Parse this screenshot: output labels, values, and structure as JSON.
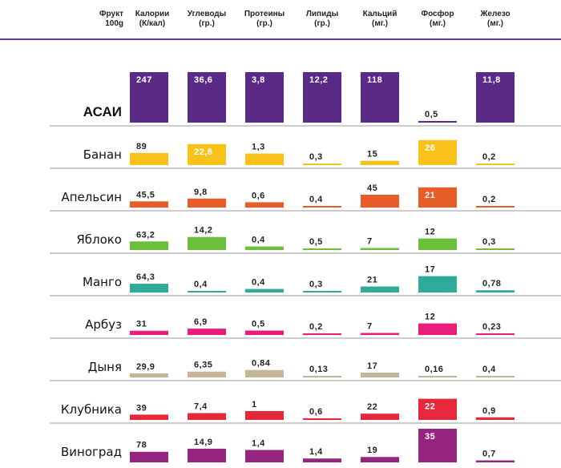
{
  "header": {
    "fruit": "Фрукт\n100g",
    "columns": [
      "Калории\n(К/кал)",
      "Углеводы\n(гр.)",
      "Протеины\n(гр.)",
      "Липиды\n(гр.)",
      "Кальций\n(мг.)",
      "Фосфор\n(мг.)",
      "Железо\n(мг.)"
    ]
  },
  "chart_data": {
    "type": "table",
    "columns": [
      "Калории (К/кал)",
      "Углеводы (гр.)",
      "Протеины (гр.)",
      "Липиды (гр.)",
      "Кальций (мг.)",
      "Фосфор (мг.)",
      "Железо (мг.)"
    ],
    "rows": [
      {
        "name": "АСАИ",
        "color": "#5b2a86",
        "highlight": true,
        "labels": [
          "247",
          "36,6",
          "3,8",
          "12,2",
          "118",
          "0,5",
          "11,8"
        ],
        "values": [
          247,
          36.6,
          3.8,
          12.2,
          118,
          0.5,
          11.8
        ]
      },
      {
        "name": "Банан",
        "color": "#f9c21b",
        "labels": [
          "89",
          "22,8",
          "1,3",
          "0,3",
          "15",
          "26",
          "0,2"
        ],
        "values": [
          89,
          22.8,
          1.3,
          0.3,
          15,
          26,
          0.2
        ]
      },
      {
        "name": "Апельсин",
        "color": "#e85c2a",
        "labels": [
          "45,5",
          "9,8",
          "0,6",
          "0,4",
          "45",
          "21",
          "0,2"
        ],
        "values": [
          45.5,
          9.8,
          0.6,
          0.4,
          45,
          21,
          0.2
        ]
      },
      {
        "name": "Яблоко",
        "color": "#6bbf3a",
        "labels": [
          "63,2",
          "14,2",
          "0,4",
          "0,5",
          "7",
          "12",
          "0,3"
        ],
        "values": [
          63.2,
          14.2,
          0.4,
          0.5,
          7,
          12,
          0.3
        ]
      },
      {
        "name": "Манго",
        "color": "#2faa9b",
        "labels": [
          "64,3",
          "0,4",
          "0,4",
          "0,3",
          "21",
          "17",
          "0,78"
        ],
        "values": [
          64.3,
          0.4,
          0.4,
          0.3,
          21,
          17,
          0.78
        ]
      },
      {
        "name": "Арбуз",
        "color": "#ec1c7a",
        "labels": [
          "31",
          "6,9",
          "0,5",
          "0,2",
          "7",
          "12",
          "0,23"
        ],
        "values": [
          31,
          6.9,
          0.5,
          0.2,
          7,
          12,
          0.23
        ]
      },
      {
        "name": "Дыня",
        "color": "#c4b596",
        "labels": [
          "29,9",
          "6,35",
          "0,84",
          "0,13",
          "17",
          "0,16",
          "0,4"
        ],
        "values": [
          29.9,
          6.35,
          0.84,
          0.13,
          17,
          0.16,
          0.4
        ]
      },
      {
        "name": "Клубника",
        "color": "#e5283c",
        "labels": [
          "39",
          "7,4",
          "1",
          "0,6",
          "22",
          "22",
          "0,9"
        ],
        "values": [
          39,
          7.4,
          1,
          0.6,
          22,
          22,
          0.9
        ]
      },
      {
        "name": "Виноград",
        "color": "#962481",
        "labels": [
          "78",
          "14,9",
          "1,4",
          "1,4",
          "19",
          "35",
          "0,7"
        ],
        "values": [
          78,
          14.9,
          1.4,
          1.4,
          19,
          35,
          0.7
        ]
      }
    ]
  }
}
